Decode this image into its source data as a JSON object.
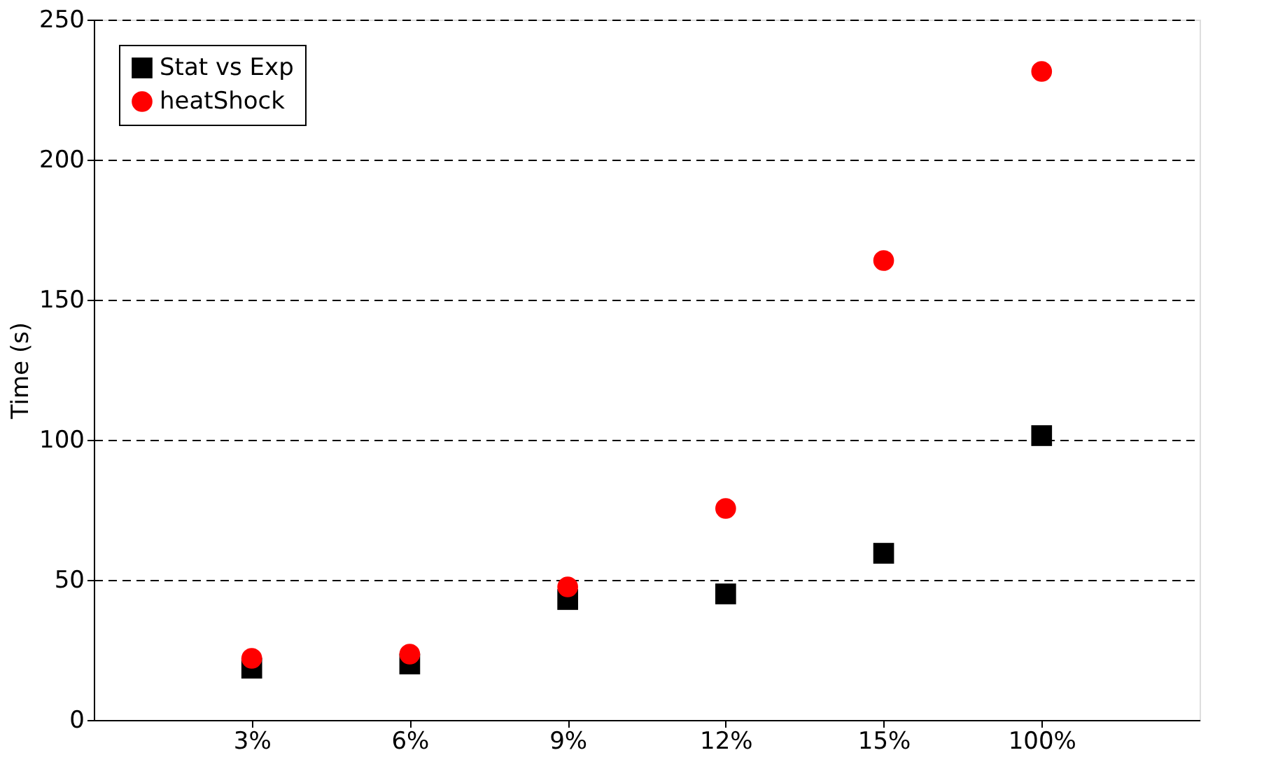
{
  "chart_data": {
    "type": "scatter",
    "ylabel": "Time (s)",
    "categories": [
      "3%",
      "6%",
      "9%",
      "12%",
      "15%",
      "100%"
    ],
    "series": [
      {
        "name": "Stat vs Exp",
        "color": "#000000",
        "marker": "square",
        "values": [
          18.5,
          20,
          43,
          45,
          59.5,
          101.5
        ]
      },
      {
        "name": "heatShock",
        "color": "#ff0000",
        "marker": "circle",
        "values": [
          22,
          23.5,
          47.5,
          75.5,
          164,
          231.5
        ]
      }
    ],
    "ylim": [
      0,
      250
    ],
    "yticks": [
      0,
      50,
      100,
      150,
      200,
      250
    ],
    "grid": "y",
    "legend": "top left"
  }
}
